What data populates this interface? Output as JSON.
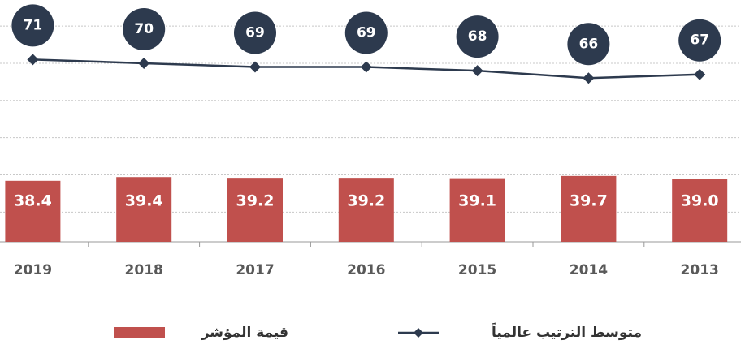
{
  "chart_data": {
    "type": "bar",
    "categories": [
      "2019",
      "2018",
      "2017",
      "2016",
      "2015",
      "2014",
      "2013"
    ],
    "series": [
      {
        "name": "قيمة المؤشر",
        "type": "bar",
        "color": "#c0504d",
        "values": [
          38.4,
          39.4,
          39.2,
          39.2,
          39.1,
          39.7,
          39.0
        ],
        "value_labels": [
          "38.4",
          "39.4",
          "39.2",
          "39.2",
          "39.1",
          "39.7",
          "39.0"
        ]
      },
      {
        "name": "متوسط الترتيب عالمياً",
        "type": "line",
        "color": "#2d3a4e",
        "values": [
          71,
          70,
          69,
          69,
          68,
          66,
          67
        ]
      }
    ],
    "ylim": [
      22,
      87
    ],
    "yticks": [
      30,
      40,
      50,
      60,
      70,
      80
    ],
    "grid": true
  }
}
